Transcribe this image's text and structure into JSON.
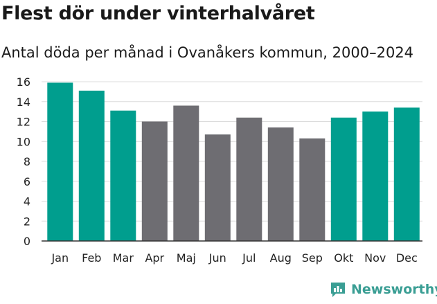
{
  "header": {
    "title": "Flest dör under vinterhalvåret",
    "subtitle": "Antal döda per månad i Ovanåkers kommun, 2000–2024"
  },
  "brand": {
    "name": "Newsworthy",
    "icon": "newsworthy-logo-icon",
    "color": "#3a9e94"
  },
  "colors": {
    "highlight": "#009e8e",
    "base": "#6e6d72",
    "grid": "#dcdcdc",
    "axis": "#333333"
  },
  "chart_data": {
    "type": "bar",
    "title": "Flest dör under vinterhalvåret",
    "subtitle": "Antal döda per månad i Ovanåkers kommun, 2000–2024",
    "xlabel": "",
    "ylabel": "",
    "ylim": [
      0,
      16
    ],
    "yticks": [
      0,
      2,
      4,
      6,
      8,
      10,
      12,
      14,
      16
    ],
    "grid": true,
    "categories": [
      "Jan",
      "Feb",
      "Mar",
      "Apr",
      "Maj",
      "Jun",
      "Jul",
      "Aug",
      "Sep",
      "Okt",
      "Nov",
      "Dec"
    ],
    "values": [
      15.9,
      15.1,
      13.1,
      12.0,
      13.6,
      10.7,
      12.4,
      11.4,
      10.3,
      12.4,
      13.0,
      13.4
    ],
    "highlighted": [
      true,
      true,
      true,
      false,
      false,
      false,
      false,
      false,
      false,
      true,
      true,
      true
    ]
  }
}
